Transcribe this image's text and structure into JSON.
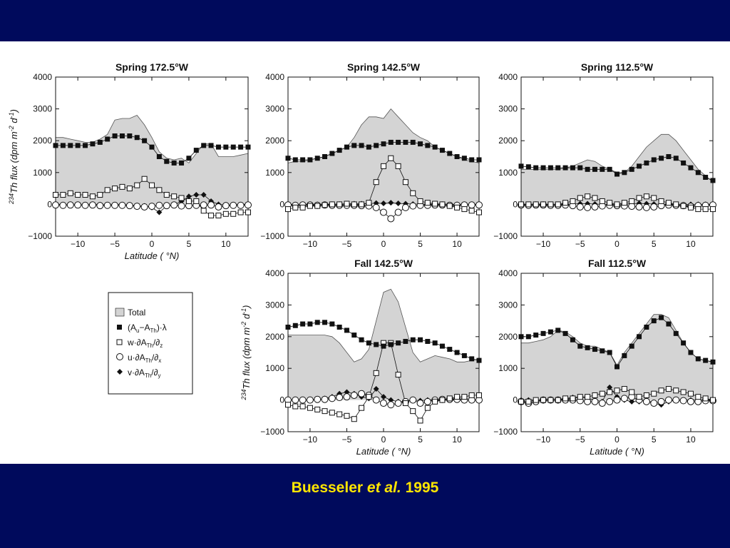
{
  "caption": {
    "author": "Buesseler",
    "etal": "et al.",
    "year": "1995"
  },
  "legend": {
    "total": "Total",
    "term1": {
      "a": "(A",
      "sub1": "u",
      "b": "−A",
      "sub2": "Th",
      "c": ")·λ"
    },
    "term2": {
      "a": "w·∂A",
      "sub1": "Th",
      "b": "/∂",
      "sub2": "z"
    },
    "term3": {
      "a": "u·∂A",
      "sub1": "Th",
      "b": "/∂",
      "sub2": "x"
    },
    "term4": {
      "a": "v·∂A",
      "sub1": "Th",
      "b": "/∂",
      "sub2": "y"
    }
  },
  "axis": {
    "ylabel_sup": "234",
    "ylabel_a": "Th flux (",
    "ylabel_b": "dpm m",
    "ylabel_exp1": "-2",
    "ylabel_c": " d",
    "ylabel_exp2": "-1",
    "ylabel_d": ")",
    "xlabel_a": "Latitude",
    "xlabel_b": " ( °N)"
  },
  "colors": {
    "background": "#000a5c",
    "caption": "#ffe600",
    "fill": "#d4d4d4",
    "ink": "#111111"
  },
  "chart_data": [
    {
      "type": "scatter",
      "title": "Spring 172.5°W",
      "xlim": [
        -13,
        13
      ],
      "ylim": [
        -1000,
        4000
      ],
      "xticks": [
        -10,
        -5,
        0,
        5,
        10
      ],
      "yticks": [
        -1000,
        0,
        1000,
        2000,
        3000,
        4000
      ],
      "x": [
        -13,
        -12,
        -11,
        -10,
        -9,
        -8,
        -7,
        -6,
        -5,
        -4,
        -3,
        -2,
        -1,
        0,
        1,
        2,
        3,
        4,
        5,
        6,
        7,
        8,
        9,
        10,
        11,
        12,
        13
      ],
      "series": [
        {
          "name": "Total",
          "style": "area",
          "values": [
            2100,
            2100,
            2050,
            2000,
            1950,
            1950,
            2050,
            2200,
            2650,
            2700,
            2700,
            2800,
            2500,
            2100,
            1650,
            1450,
            1400,
            1450,
            1300,
            1600,
            1900,
            1900,
            1500,
            1500,
            1500,
            1550,
            1600
          ]
        },
        {
          "name": "(Au−ATh)·λ",
          "style": "filled-square",
          "values": [
            1850,
            1850,
            1850,
            1850,
            1850,
            1900,
            1950,
            2050,
            2150,
            2150,
            2150,
            2100,
            2000,
            1800,
            1500,
            1350,
            1300,
            1300,
            1450,
            1700,
            1850,
            1850,
            1800,
            1800,
            1800,
            1800,
            1800
          ]
        },
        {
          "name": "w·∂ATh/∂z",
          "style": "open-square",
          "values": [
            300,
            300,
            350,
            300,
            300,
            250,
            300,
            450,
            500,
            550,
            500,
            600,
            800,
            600,
            450,
            300,
            250,
            200,
            100,
            100,
            -200,
            -350,
            -350,
            -300,
            -300,
            -250,
            -250
          ]
        },
        {
          "name": "u·∂ATh/∂x",
          "style": "open-circle",
          "values": [
            -20,
            -30,
            -20,
            -20,
            -30,
            -20,
            -40,
            -30,
            -30,
            -30,
            -40,
            -60,
            -80,
            -60,
            -30,
            -40,
            -20,
            -50,
            -40,
            -30,
            -20,
            -20,
            -80,
            -40,
            -30,
            -30,
            -20
          ]
        },
        {
          "name": "v·∂ATh/∂y",
          "style": "filled-diamond",
          "values": [
            0,
            -10,
            -20,
            -10,
            -20,
            0,
            -10,
            -20,
            -10,
            -10,
            -20,
            -40,
            -50,
            -100,
            -250,
            -50,
            -20,
            100,
            250,
            300,
            300,
            100,
            0,
            -20,
            -20,
            -10,
            0
          ]
        }
      ]
    },
    {
      "type": "scatter",
      "title": "Spring 142.5°W",
      "xlim": [
        -13,
        13
      ],
      "ylim": [
        -1000,
        4000
      ],
      "xticks": [
        -10,
        -5,
        0,
        5,
        10
      ],
      "yticks": [
        -1000,
        0,
        1000,
        2000,
        3000,
        4000
      ],
      "x": [
        -13,
        -12,
        -11,
        -10,
        -9,
        -8,
        -7,
        -6,
        -5,
        -4,
        -3,
        -2,
        -1,
        0,
        1,
        2,
        3,
        4,
        5,
        6,
        7,
        8,
        9,
        10,
        11,
        12,
        13
      ],
      "series": [
        {
          "name": "Total",
          "style": "area",
          "values": [
            1300,
            1350,
            1350,
            1400,
            1450,
            1500,
            1600,
            1700,
            1800,
            2100,
            2500,
            2750,
            2750,
            2700,
            3000,
            2750,
            2500,
            2250,
            2100,
            2000,
            1800,
            1700,
            1600,
            1500,
            1400,
            1350,
            1300
          ]
        },
        {
          "name": "(Au−ATh)·λ",
          "style": "filled-square",
          "values": [
            1450,
            1400,
            1400,
            1400,
            1450,
            1500,
            1600,
            1700,
            1800,
            1850,
            1850,
            1800,
            1850,
            1900,
            1950,
            1950,
            1950,
            1950,
            1900,
            1850,
            1800,
            1700,
            1600,
            1500,
            1450,
            1400,
            1400
          ]
        },
        {
          "name": "w·∂ATh/∂z",
          "style": "open-square",
          "values": [
            -150,
            -100,
            -100,
            -50,
            -50,
            -20,
            0,
            0,
            20,
            0,
            0,
            50,
            700,
            1200,
            1450,
            1200,
            700,
            350,
            100,
            50,
            20,
            0,
            -50,
            -100,
            -150,
            -200,
            -250
          ]
        },
        {
          "name": "u·∂ATh/∂x",
          "style": "open-circle",
          "values": [
            -20,
            -30,
            -20,
            -20,
            -30,
            -20,
            -30,
            -30,
            -30,
            -30,
            -40,
            -50,
            -100,
            -250,
            -450,
            -250,
            -100,
            -50,
            -30,
            -30,
            -20,
            -20,
            -30,
            -30,
            -20,
            -20,
            -20
          ]
        },
        {
          "name": "v·∂ATh/∂y",
          "style": "filled-diamond",
          "values": [
            0,
            -10,
            -10,
            0,
            0,
            0,
            10,
            10,
            20,
            20,
            20,
            20,
            40,
            30,
            50,
            30,
            20,
            10,
            10,
            0,
            -10,
            -10,
            -10,
            0,
            0,
            0,
            0
          ]
        }
      ]
    },
    {
      "type": "scatter",
      "title": "Spring 112.5°W",
      "xlim": [
        -13,
        13
      ],
      "ylim": [
        -1000,
        4000
      ],
      "xticks": [
        -10,
        -5,
        0,
        5,
        10
      ],
      "yticks": [
        -1000,
        0,
        1000,
        2000,
        3000,
        4000
      ],
      "x": [
        -13,
        -12,
        -11,
        -10,
        -9,
        -8,
        -7,
        -6,
        -5,
        -4,
        -3,
        -2,
        -1,
        0,
        1,
        2,
        3,
        4,
        5,
        6,
        7,
        8,
        9,
        10,
        11,
        12,
        13
      ],
      "series": [
        {
          "name": "Total",
          "style": "area",
          "values": [
            1100,
            1100,
            1100,
            1100,
            1100,
            1100,
            1150,
            1200,
            1300,
            1400,
            1350,
            1200,
            1100,
            1000,
            1000,
            1200,
            1500,
            1800,
            2000,
            2200,
            2200,
            2000,
            1700,
            1400,
            1100,
            900,
            700
          ]
        },
        {
          "name": "(Au−ATh)·λ",
          "style": "filled-square",
          "values": [
            1200,
            1180,
            1150,
            1150,
            1150,
            1150,
            1150,
            1150,
            1150,
            1100,
            1100,
            1100,
            1100,
            950,
            1000,
            1100,
            1200,
            1300,
            1400,
            1450,
            1500,
            1450,
            1300,
            1150,
            1000,
            850,
            750
          ]
        },
        {
          "name": "w·∂ATh/∂z",
          "style": "open-square",
          "values": [
            0,
            0,
            0,
            0,
            0,
            0,
            50,
            100,
            200,
            250,
            200,
            100,
            50,
            0,
            50,
            100,
            200,
            250,
            200,
            100,
            50,
            0,
            -50,
            -100,
            -150,
            -150,
            -150
          ]
        },
        {
          "name": "u·∂ATh/∂x",
          "style": "open-circle",
          "values": [
            -20,
            -30,
            -20,
            -20,
            -30,
            -30,
            -20,
            -40,
            -80,
            -100,
            -80,
            -50,
            -30,
            -40,
            -50,
            -60,
            -80,
            -100,
            -80,
            -40,
            -20,
            -30,
            -40,
            -60,
            -40,
            -30,
            -20
          ]
        },
        {
          "name": "v·∂ATh/∂y",
          "style": "filled-diamond",
          "values": [
            0,
            0,
            0,
            0,
            0,
            0,
            0,
            10,
            20,
            20,
            10,
            0,
            0,
            0,
            10,
            20,
            30,
            20,
            10,
            0,
            0,
            -10,
            -10,
            0,
            0,
            0,
            0
          ]
        }
      ]
    },
    {
      "type": "scatter",
      "title": "Fall 142.5°W",
      "xlim": [
        -13,
        13
      ],
      "ylim": [
        -1000,
        4000
      ],
      "xticks": [
        -10,
        -5,
        0,
        5,
        10
      ],
      "yticks": [
        -1000,
        0,
        1000,
        2000,
        3000,
        4000
      ],
      "x": [
        -13,
        -12,
        -11,
        -10,
        -9,
        -8,
        -7,
        -6,
        -5,
        -4,
        -3,
        -2,
        -1,
        0,
        1,
        2,
        3,
        4,
        5,
        6,
        7,
        8,
        9,
        10,
        11,
        12,
        13
      ],
      "series": [
        {
          "name": "Total",
          "style": "area",
          "values": [
            2050,
            2050,
            2050,
            2050,
            2050,
            2050,
            2000,
            1800,
            1500,
            1200,
            1300,
            1600,
            2500,
            3400,
            3500,
            3100,
            2300,
            1500,
            1200,
            1300,
            1400,
            1350,
            1300,
            1200,
            1200,
            1250,
            1300
          ]
        },
        {
          "name": "(Au−ATh)·λ",
          "style": "filled-square",
          "values": [
            2300,
            2350,
            2400,
            2400,
            2450,
            2450,
            2400,
            2300,
            2200,
            2050,
            1900,
            1800,
            1750,
            1700,
            1750,
            1800,
            1850,
            1900,
            1900,
            1850,
            1800,
            1700,
            1600,
            1500,
            1400,
            1300,
            1250
          ]
        },
        {
          "name": "w·∂ATh/∂z",
          "style": "open-square",
          "values": [
            -150,
            -200,
            -200,
            -250,
            -300,
            -350,
            -400,
            -450,
            -500,
            -600,
            -250,
            100,
            850,
            1800,
            1800,
            800,
            -100,
            -350,
            -650,
            -250,
            -50,
            0,
            50,
            100,
            100,
            150,
            150
          ]
        },
        {
          "name": "u·∂ATh/∂x",
          "style": "open-circle",
          "values": [
            0,
            0,
            0,
            0,
            20,
            20,
            50,
            80,
            100,
            150,
            200,
            150,
            0,
            -100,
            -150,
            -100,
            -50,
            0,
            -100,
            -50,
            0,
            20,
            20,
            20,
            0,
            0,
            0
          ]
        },
        {
          "name": "v·∂ATh/∂y",
          "style": "filled-diamond",
          "values": [
            0,
            0,
            0,
            0,
            0,
            50,
            100,
            200,
            250,
            200,
            100,
            50,
            350,
            100,
            0,
            -50,
            -50,
            0,
            -20,
            0,
            0,
            0,
            0,
            0,
            0,
            0,
            0
          ]
        }
      ]
    },
    {
      "type": "scatter",
      "title": "Fall 112.5°W",
      "xlim": [
        -13,
        13
      ],
      "ylim": [
        -1000,
        4000
      ],
      "xticks": [
        -10,
        -5,
        0,
        5,
        10
      ],
      "yticks": [
        -1000,
        0,
        1000,
        2000,
        3000,
        4000
      ],
      "x": [
        -13,
        -12,
        -11,
        -10,
        -9,
        -8,
        -7,
        -6,
        -5,
        -4,
        -3,
        -2,
        -1,
        0,
        1,
        2,
        3,
        4,
        5,
        6,
        7,
        8,
        9,
        10,
        11,
        12,
        13
      ],
      "series": [
        {
          "name": "Total",
          "style": "area",
          "values": [
            1800,
            1800,
            1850,
            1900,
            2000,
            2200,
            2150,
            2000,
            1800,
            1700,
            1700,
            1600,
            1500,
            1100,
            1500,
            1800,
            2100,
            2400,
            2700,
            2700,
            2600,
            2200,
            1800,
            1500,
            1300,
            1250,
            1200
          ]
        },
        {
          "name": "(Au−ATh)·λ",
          "style": "filled-square",
          "values": [
            2000,
            2000,
            2050,
            2100,
            2150,
            2200,
            2100,
            1900,
            1700,
            1650,
            1600,
            1550,
            1500,
            1050,
            1400,
            1700,
            2000,
            2300,
            2500,
            2600,
            2400,
            2100,
            1800,
            1500,
            1300,
            1250,
            1200
          ]
        },
        {
          "name": "w·∂ATh/∂z",
          "style": "open-square",
          "values": [
            -50,
            -50,
            0,
            0,
            0,
            0,
            50,
            50,
            100,
            100,
            150,
            200,
            250,
            300,
            350,
            250,
            100,
            150,
            200,
            300,
            350,
            300,
            250,
            200,
            100,
            50,
            0
          ]
        },
        {
          "name": "u·∂ATh/∂x",
          "style": "open-circle",
          "values": [
            -50,
            -100,
            -50,
            0,
            0,
            0,
            0,
            0,
            -20,
            -50,
            -50,
            -100,
            -50,
            0,
            50,
            100,
            0,
            -50,
            -100,
            -50,
            0,
            0,
            -20,
            -50,
            -50,
            -20,
            -20
          ]
        },
        {
          "name": "v·∂ATh/∂y",
          "style": "filled-diamond",
          "values": [
            0,
            0,
            0,
            0,
            0,
            20,
            50,
            80,
            100,
            50,
            0,
            -50,
            400,
            100,
            0,
            -50,
            -50,
            0,
            -100,
            -150,
            -50,
            0,
            0,
            0,
            0,
            0,
            0
          ]
        }
      ]
    }
  ]
}
